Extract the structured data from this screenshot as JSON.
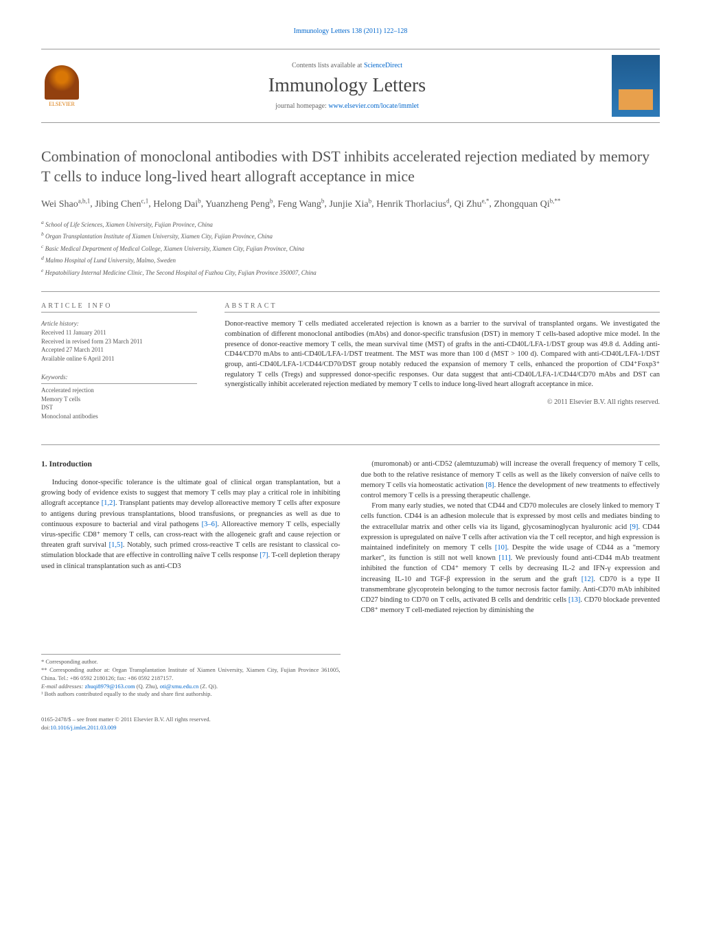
{
  "header": {
    "citation": "Immunology Letters 138 (2011) 122–128",
    "contentsLine": "Contents lists available at ",
    "contentsLink": "ScienceDirect",
    "journalName": "Immunology Letters",
    "homepagePrefix": "journal homepage: ",
    "homepageLink": "www.elsevier.com/locate/immlet",
    "elsevierLabel": "ELSEVIER"
  },
  "article": {
    "title": "Combination of monoclonal antibodies with DST inhibits accelerated rejection mediated by memory T cells to induce long-lived heart allograft acceptance in mice",
    "authors": [
      {
        "name": "Wei Shao",
        "affil": "a,b,1"
      },
      {
        "name": "Jibing Chen",
        "affil": "c,1"
      },
      {
        "name": "Helong Dai",
        "affil": "b"
      },
      {
        "name": "Yuanzheng Peng",
        "affil": "b"
      },
      {
        "name": "Feng Wang",
        "affil": "b"
      },
      {
        "name": "Junjie Xia",
        "affil": "b"
      },
      {
        "name": "Henrik Thorlacius",
        "affil": "d"
      },
      {
        "name": "Qi Zhu",
        "affil": "e,*"
      },
      {
        "name": "Zhongquan Qi",
        "affil": "b,**"
      }
    ],
    "affiliations": [
      {
        "key": "a",
        "text": "School of Life Sciences, Xiamen University, Fujian Province, China"
      },
      {
        "key": "b",
        "text": "Organ Transplantation Institute of Xiamen University, Xiamen City, Fujian Province, China"
      },
      {
        "key": "c",
        "text": "Basic Medical Department of Medical College, Xiamen University, Xiamen City, Fujian Province, China"
      },
      {
        "key": "d",
        "text": "Malmo Hospital of Lund University, Malmo, Sweden"
      },
      {
        "key": "e",
        "text": "Hepatobiliary Internal Medicine Clinic, The Second Hospital of Fuzhou City, Fujian Province 350007, China"
      }
    ]
  },
  "info": {
    "heading": "article info",
    "historyLabel": "Article history:",
    "received": "Received 11 January 2011",
    "revised": "Received in revised form 23 March 2011",
    "accepted": "Accepted 27 March 2011",
    "online": "Available online 6 April 2011",
    "keywordsLabel": "Keywords:",
    "keywords": [
      "Accelerated rejection",
      "Memory T cells",
      "DST",
      "Monoclonal antibodies"
    ]
  },
  "abstract": {
    "heading": "abstract",
    "text": "Donor-reactive memory T cells mediated accelerated rejection is known as a barrier to the survival of transplanted organs. We investigated the combination of different monoclonal antibodies (mAbs) and donor-specific transfusion (DST) in memory T cells-based adoptive mice model. In the presence of donor-reactive memory T cells, the mean survival time (MST) of grafts in the anti-CD40L/LFA-1/DST group was 49.8 d. Adding anti-CD44/CD70 mAbs to anti-CD40L/LFA-1/DST treatment. The MST was more than 100 d (MST > 100 d). Compared with anti-CD40L/LFA-1/DST group, anti-CD40L/LFA-1/CD44/CD70/DST group notably reduced the expansion of memory T cells, enhanced the proportion of CD4⁺Foxp3⁺ regulatory T cells (Tregs) and suppressed donor-specific responses. Our data suggest that anti-CD40L/LFA-1/CD44/CD70 mAbs and DST can synergistically inhibit accelerated rejection mediated by memory T cells to induce long-lived heart allograft acceptance in mice.",
    "copyright": "© 2011 Elsevier B.V. All rights reserved."
  },
  "body": {
    "introHeading": "1. Introduction",
    "col1p1": "Inducing donor-specific tolerance is the ultimate goal of clinical organ transplantation, but a growing body of evidence exists to suggest that memory T cells may play a critical role in inhibiting allograft acceptance [1,2]. Transplant patients may develop alloreactive memory T cells after exposure to antigens during previous transplantations, blood transfusions, or pregnancies as well as due to continuous exposure to bacterial and viral pathogens [3–6]. Alloreactive memory T cells, especially virus-specific CD8⁺ memory T cells, can cross-react with the allogeneic graft and cause rejection or threaten graft survival [1,5]. Notably, such primed cross-reactive T cells are resistant to classical co-stimulation blockade that are effective in controlling naïve T cells response [7]. T-cell depletion therapy used in clinical transplantation such as anti-CD3",
    "col2p1": "(muromonab) or anti-CD52 (alemtuzumab) will increase the overall frequency of memory T cells, due both to the relative resistance of memory T cells as well as the likely conversion of naïve cells to memory T cells via homeostatic activation [8]. Hence the development of new treatments to effectively control memory T cells is a pressing therapeutic challenge.",
    "col2p2": "From many early studies, we noted that CD44 and CD70 molecules are closely linked to memory T cells function. CD44 is an adhesion molecule that is expressed by most cells and mediates binding to the extracellular matrix and other cells via its ligand, glycosaminoglycan hyaluronic acid [9]. CD44 expression is upregulated on naïve T cells after activation via the T cell receptor, and high expression is maintained indefinitely on memory T cells [10]. Despite the wide usage of CD44 as a \"memory marker\", its function is still not well known [11]. We previously found anti-CD44 mAb treatment inhibited the function of CD4⁺ memory T cells by decreasing IL-2 and IFN-γ expression and increasing IL-10 and TGF-β expression in the serum and the graft [12]. CD70 is a type II transmembrane glycoprotein belonging to the tumor necrosis factor family. Anti-CD70 mAb inhibited CD27 binding to CD70 on T cells, activated B cells and dendritic cells [13]. CD70 blockade prevented CD8⁺ memory T cell-mediated rejection by diminishing the"
  },
  "footnotes": {
    "corr1": "* Corresponding author.",
    "corr2": "** Corresponding author at: Organ Transplantation Institute of Xiamen University, Xiamen City, Fujian Province 361005, China. Tel.: +86 0592 2180126; fax: +86 0592 2187157.",
    "emailLabel": "E-mail addresses: ",
    "email1": "zhuqi8979@163.com",
    "email1name": " (Q. Zhu), ",
    "email2": "oti@xmu.edu.cn",
    "email2name": " (Z. Qi).",
    "note1": "¹ Both authors contributed equally to the study and share first authorship."
  },
  "doi": {
    "line1": "0165-2478/$ – see front matter © 2011 Elsevier B.V. All rights reserved.",
    "line2prefix": "doi:",
    "line2link": "10.1016/j.imlet.2011.03.009"
  }
}
